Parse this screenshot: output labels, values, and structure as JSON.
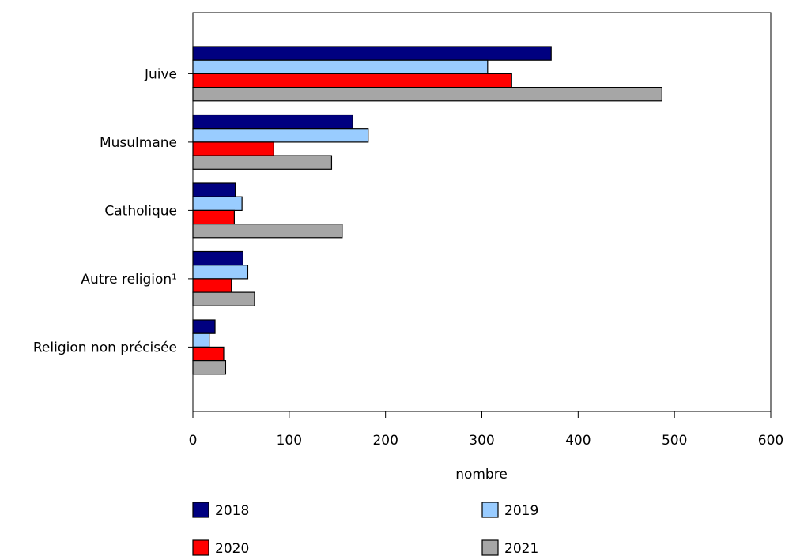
{
  "chart_data": {
    "type": "bar",
    "orientation": "horizontal",
    "title": "",
    "xlabel": "nombre",
    "ylabel": "",
    "xlim": [
      0,
      600
    ],
    "xticks": [
      0,
      100,
      200,
      300,
      400,
      500,
      600
    ],
    "categories": [
      "Juive",
      "Musulmane",
      "Catholique",
      "Autre religion¹",
      "Religion non précisée"
    ],
    "series": [
      {
        "name": "2018",
        "color": "#000080",
        "values": [
          372,
          166,
          44,
          52,
          23
        ]
      },
      {
        "name": "2019",
        "color": "#99ccff",
        "values": [
          306,
          182,
          51,
          57,
          17
        ]
      },
      {
        "name": "2020",
        "color": "#ff0000",
        "values": [
          331,
          84,
          43,
          40,
          32
        ]
      },
      {
        "name": "2021",
        "color": "#a6a6a6",
        "values": [
          487,
          144,
          155,
          64,
          34
        ]
      }
    ],
    "grid": false,
    "legend_position": "bottom"
  }
}
